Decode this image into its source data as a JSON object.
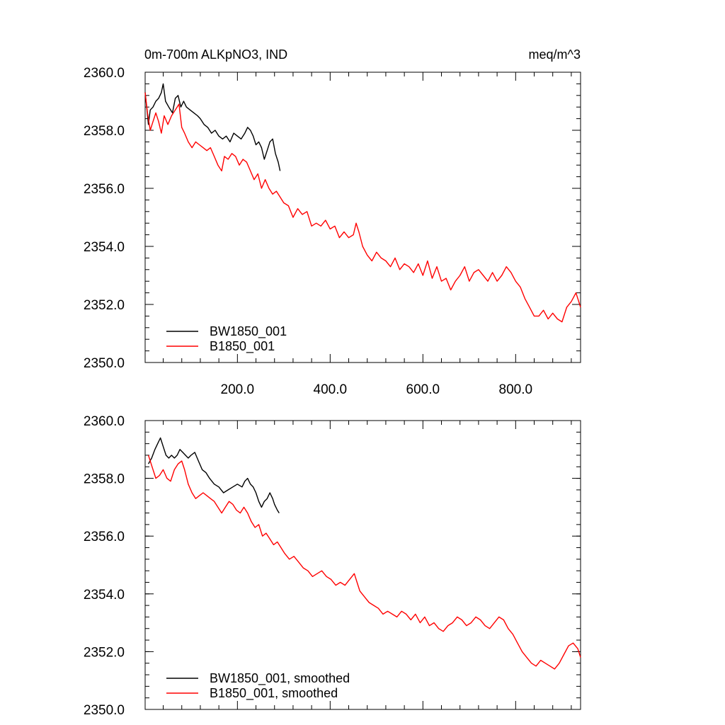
{
  "chart_data": [
    {
      "type": "line",
      "title_left": "0m-700m ALKpNO3, IND",
      "title_right": "meq/m^3",
      "xlim": [
        1,
        940
      ],
      "ylim": [
        2350,
        2360
      ],
      "x_ticks": [
        200,
        400,
        600,
        800
      ],
      "x_tick_labels": [
        "200.0",
        "400.0",
        "600.0",
        "800.0"
      ],
      "y_ticks": [
        2350,
        2352,
        2354,
        2356,
        2358,
        2360
      ],
      "y_tick_labels": [
        "2350.0",
        "2352.0",
        "2354.0",
        "2356.0",
        "2358.0",
        "2360.0"
      ],
      "legend_position": "bottom-left",
      "series": [
        {
          "name": "BW1850_001",
          "color": "#000000",
          "x": [
            1,
            5,
            8,
            12,
            18,
            24,
            30,
            36,
            40,
            45,
            52,
            60,
            66,
            72,
            78,
            84,
            90,
            98,
            106,
            114,
            120,
            128,
            136,
            144,
            152,
            160,
            168,
            176,
            184,
            192,
            200,
            208,
            216,
            222,
            228,
            234,
            240,
            246,
            252,
            258,
            264,
            270,
            276,
            282,
            288,
            292
          ],
          "values": [
            2359.3,
            2358.7,
            2358.2,
            2358.7,
            2358.8,
            2359.0,
            2359.1,
            2359.3,
            2359.6,
            2359.0,
            2358.8,
            2358.6,
            2359.1,
            2359.2,
            2358.8,
            2359.0,
            2358.8,
            2358.7,
            2358.6,
            2358.5,
            2358.4,
            2358.2,
            2358.1,
            2357.9,
            2358.0,
            2357.8,
            2357.7,
            2357.8,
            2357.6,
            2357.9,
            2357.8,
            2357.7,
            2357.9,
            2358.1,
            2358.0,
            2357.8,
            2357.5,
            2357.6,
            2357.4,
            2357.0,
            2357.3,
            2357.6,
            2357.7,
            2357.2,
            2356.9,
            2356.6
          ]
        },
        {
          "name": "B1850_001",
          "color": "#ff0000",
          "x": [
            1,
            6,
            12,
            18,
            24,
            30,
            36,
            42,
            50,
            58,
            66,
            74,
            80,
            86,
            94,
            102,
            110,
            118,
            126,
            134,
            142,
            150,
            158,
            166,
            172,
            180,
            188,
            196,
            204,
            212,
            220,
            228,
            236,
            244,
            252,
            260,
            268,
            276,
            284,
            292,
            300,
            310,
            320,
            330,
            340,
            350,
            360,
            370,
            380,
            390,
            400,
            410,
            420,
            430,
            440,
            450,
            456,
            462,
            470,
            480,
            490,
            500,
            510,
            520,
            530,
            540,
            550,
            560,
            570,
            580,
            590,
            600,
            610,
            620,
            630,
            640,
            650,
            660,
            670,
            680,
            690,
            700,
            710,
            720,
            730,
            740,
            750,
            760,
            770,
            780,
            790,
            800,
            810,
            820,
            830,
            840,
            850,
            860,
            870,
            880,
            890,
            900,
            910,
            920,
            930,
            940
          ],
          "values": [
            2359.3,
            2358.6,
            2358.0,
            2358.3,
            2358.6,
            2358.3,
            2357.9,
            2358.5,
            2358.2,
            2358.5,
            2358.7,
            2358.9,
            2358.1,
            2357.9,
            2357.6,
            2357.4,
            2357.6,
            2357.5,
            2357.4,
            2357.3,
            2357.4,
            2357.1,
            2356.8,
            2356.6,
            2357.1,
            2357.0,
            2357.2,
            2357.1,
            2356.8,
            2357.0,
            2356.9,
            2356.6,
            2356.3,
            2356.5,
            2356.0,
            2356.3,
            2356.0,
            2355.8,
            2355.9,
            2355.7,
            2355.5,
            2355.4,
            2355.0,
            2355.3,
            2355.1,
            2355.2,
            2354.7,
            2354.8,
            2354.7,
            2354.9,
            2354.6,
            2354.7,
            2354.3,
            2354.5,
            2354.3,
            2354.4,
            2354.8,
            2354.5,
            2354.0,
            2353.7,
            2353.5,
            2353.8,
            2353.6,
            2353.5,
            2353.3,
            2353.6,
            2353.2,
            2353.4,
            2353.3,
            2353.1,
            2353.4,
            2353.0,
            2353.5,
            2352.9,
            2353.3,
            2352.8,
            2352.9,
            2352.5,
            2352.8,
            2353.0,
            2353.3,
            2352.8,
            2353.1,
            2353.2,
            2353.0,
            2352.8,
            2353.1,
            2352.8,
            2353.0,
            2353.3,
            2353.1,
            2352.8,
            2352.6,
            2352.2,
            2351.9,
            2351.6,
            2351.6,
            2351.8,
            2351.5,
            2351.7,
            2351.5,
            2351.4,
            2351.9,
            2352.1,
            2352.4,
            2351.9
          ]
        }
      ]
    },
    {
      "type": "line",
      "xlim": [
        1,
        940
      ],
      "ylim": [
        2350,
        2360
      ],
      "y_ticks": [
        2350,
        2352,
        2354,
        2356,
        2358,
        2360
      ],
      "y_tick_labels": [
        "2350.0",
        "2352.0",
        "2354.0",
        "2356.0",
        "2358.0",
        "2360.0"
      ],
      "legend_position": "bottom-left",
      "series": [
        {
          "name": "BW1850_001, smoothed",
          "color": "#000000",
          "x": [
            8,
            15,
            22,
            28,
            34,
            40,
            46,
            52,
            58,
            64,
            70,
            76,
            82,
            88,
            94,
            100,
            108,
            116,
            124,
            132,
            140,
            150,
            160,
            170,
            180,
            190,
            200,
            210,
            216,
            222,
            228,
            234,
            240,
            246,
            252,
            258,
            264,
            270,
            276,
            280,
            286,
            290
          ],
          "values": [
            2358.5,
            2358.7,
            2359.0,
            2359.2,
            2359.4,
            2359.1,
            2358.8,
            2358.7,
            2358.8,
            2358.7,
            2358.8,
            2359.0,
            2358.9,
            2358.8,
            2358.7,
            2358.8,
            2358.9,
            2358.6,
            2358.3,
            2358.2,
            2358.0,
            2357.8,
            2357.7,
            2357.5,
            2357.6,
            2357.7,
            2357.8,
            2357.7,
            2357.9,
            2358.0,
            2357.8,
            2357.7,
            2357.5,
            2357.2,
            2357.0,
            2357.2,
            2357.3,
            2357.5,
            2357.3,
            2357.1,
            2356.9,
            2356.8
          ]
        },
        {
          "name": "B1850_001, smoothed",
          "color": "#ff0000",
          "x": [
            8,
            16,
            24,
            32,
            40,
            48,
            56,
            64,
            72,
            80,
            86,
            94,
            102,
            110,
            118,
            126,
            134,
            142,
            150,
            158,
            166,
            174,
            182,
            190,
            198,
            206,
            214,
            222,
            230,
            238,
            246,
            254,
            262,
            270,
            278,
            286,
            294,
            302,
            312,
            322,
            332,
            342,
            352,
            362,
            372,
            382,
            392,
            402,
            412,
            422,
            432,
            442,
            452,
            458,
            464,
            474,
            484,
            494,
            504,
            514,
            524,
            534,
            544,
            554,
            564,
            574,
            584,
            594,
            604,
            614,
            624,
            634,
            644,
            654,
            664,
            674,
            684,
            694,
            704,
            714,
            724,
            734,
            744,
            754,
            764,
            774,
            784,
            794,
            804,
            814,
            824,
            834,
            844,
            854,
            864,
            874,
            884,
            894,
            904,
            914,
            924,
            934,
            940
          ],
          "values": [
            2358.8,
            2358.4,
            2358.0,
            2358.1,
            2358.3,
            2358.0,
            2357.9,
            2358.3,
            2358.5,
            2358.6,
            2358.3,
            2357.8,
            2357.5,
            2357.3,
            2357.4,
            2357.5,
            2357.4,
            2357.3,
            2357.2,
            2357.0,
            2356.8,
            2357.0,
            2357.2,
            2357.1,
            2356.9,
            2356.8,
            2357.0,
            2356.8,
            2356.5,
            2356.3,
            2356.4,
            2356.0,
            2356.1,
            2355.9,
            2355.7,
            2355.8,
            2355.6,
            2355.4,
            2355.2,
            2355.3,
            2355.1,
            2354.9,
            2354.8,
            2354.6,
            2354.7,
            2354.8,
            2354.6,
            2354.5,
            2354.3,
            2354.4,
            2354.3,
            2354.5,
            2354.7,
            2354.4,
            2354.1,
            2353.9,
            2353.7,
            2353.6,
            2353.5,
            2353.3,
            2353.4,
            2353.3,
            2353.2,
            2353.4,
            2353.3,
            2353.1,
            2353.3,
            2353.0,
            2353.2,
            2352.9,
            2353.0,
            2352.8,
            2352.7,
            2352.9,
            2353.0,
            2353.2,
            2353.1,
            2352.9,
            2353.0,
            2353.2,
            2353.1,
            2352.9,
            2352.8,
            2353.0,
            2353.2,
            2353.1,
            2352.8,
            2352.6,
            2352.3,
            2352.0,
            2351.8,
            2351.6,
            2351.5,
            2351.7,
            2351.6,
            2351.5,
            2351.4,
            2351.6,
            2351.9,
            2352.2,
            2352.3,
            2352.1,
            2351.8
          ]
        }
      ]
    }
  ]
}
